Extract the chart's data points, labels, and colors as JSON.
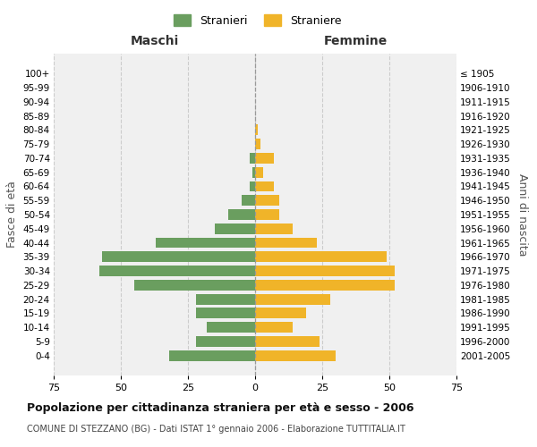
{
  "age_groups": [
    "100+",
    "95-99",
    "90-94",
    "85-89",
    "80-84",
    "75-79",
    "70-74",
    "65-69",
    "60-64",
    "55-59",
    "50-54",
    "45-49",
    "40-44",
    "35-39",
    "30-34",
    "25-29",
    "20-24",
    "15-19",
    "10-14",
    "5-9",
    "0-4"
  ],
  "birth_years": [
    "≤ 1905",
    "1906-1910",
    "1911-1915",
    "1916-1920",
    "1921-1925",
    "1926-1930",
    "1931-1935",
    "1936-1940",
    "1941-1945",
    "1946-1950",
    "1951-1955",
    "1956-1960",
    "1961-1965",
    "1966-1970",
    "1971-1975",
    "1976-1980",
    "1981-1985",
    "1986-1990",
    "1991-1995",
    "1996-2000",
    "2001-2005"
  ],
  "maschi": [
    0,
    0,
    0,
    0,
    0,
    0,
    2,
    1,
    2,
    5,
    10,
    15,
    37,
    57,
    58,
    45,
    22,
    22,
    18,
    22,
    32
  ],
  "femmine": [
    0,
    0,
    0,
    0,
    1,
    2,
    7,
    3,
    7,
    9,
    9,
    14,
    23,
    49,
    52,
    52,
    28,
    19,
    14,
    24,
    30
  ],
  "male_color": "#6a9e5f",
  "female_color": "#f0b429",
  "background_color": "#f0f0f0",
  "grid_color": "#cccccc",
  "title": "Popolazione per cittadinanza straniera per età e sesso - 2006",
  "subtitle": "COMUNE DI STEZZANO (BG) - Dati ISTAT 1° gennaio 2006 - Elaborazione TUTTITALIA.IT",
  "xlabel_left": "Maschi",
  "xlabel_right": "Femmine",
  "ylabel_left": "Fasce di età",
  "ylabel_right": "Anni di nascita",
  "legend_male": "Stranieri",
  "legend_female": "Straniere",
  "xlim": 75
}
